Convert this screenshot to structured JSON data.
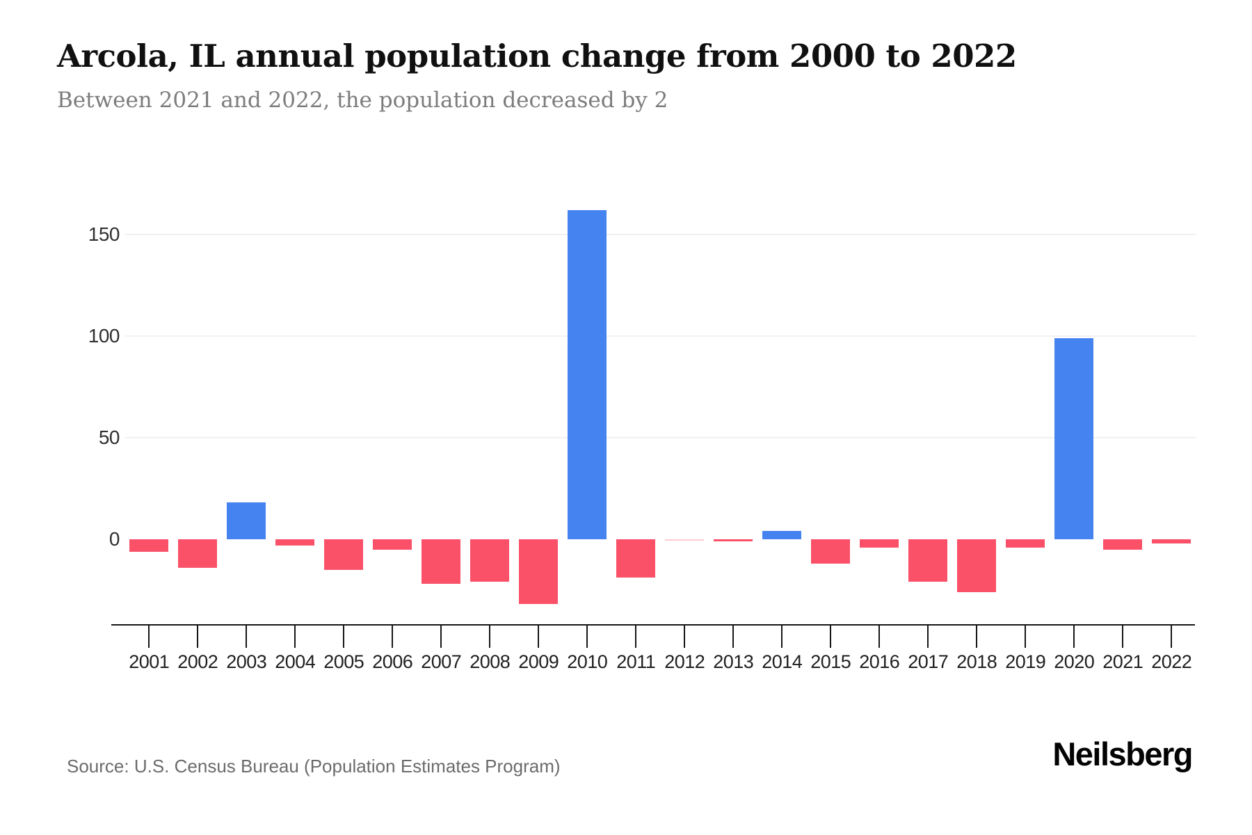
{
  "header": {
    "title": "Arcola, IL annual population change from 2000 to 2022",
    "subtitle": "Between 2021 and 2022, the population decreased by 2"
  },
  "footer": {
    "source": "Source: U.S. Census Bureau (Population Estimates Program)",
    "brand": "Neilsberg"
  },
  "colors": {
    "positive_bar": "#4583f0",
    "negative_bar": "#fa5169",
    "gridline": "#f1f1f1",
    "axis": "#161616",
    "title_text": "#101010",
    "subtitle_text": "#7c7c7c",
    "tick_label_text": "#1f1f1f",
    "source_text": "#6b6b6b",
    "background": "#ffffff"
  },
  "chart_data": {
    "type": "bar",
    "title": "Arcola, IL annual population change from 2000 to 2022",
    "subtitle": "Between 2021 and 2022, the population decreased by 2",
    "categories": [
      "2001",
      "2002",
      "2003",
      "2004",
      "2005",
      "2006",
      "2007",
      "2008",
      "2009",
      "2010",
      "2011",
      "2012",
      "2013",
      "2014",
      "2015",
      "2016",
      "2017",
      "2018",
      "2019",
      "2020",
      "2021",
      "2022"
    ],
    "values": [
      -6,
      -14,
      18,
      -3,
      -15,
      -5,
      -22,
      -21,
      -32,
      162,
      -19,
      0,
      -1,
      4,
      -12,
      -4,
      -21,
      -26,
      -4,
      99,
      -5,
      -2
    ],
    "xlabel": "",
    "ylabel": "",
    "yticks": [
      0,
      50,
      100,
      150
    ],
    "ylim": [
      -42,
      170
    ],
    "grid": "horizontal",
    "legend": "none",
    "positive_color": "#4583f0",
    "negative_color": "#fa5169"
  }
}
